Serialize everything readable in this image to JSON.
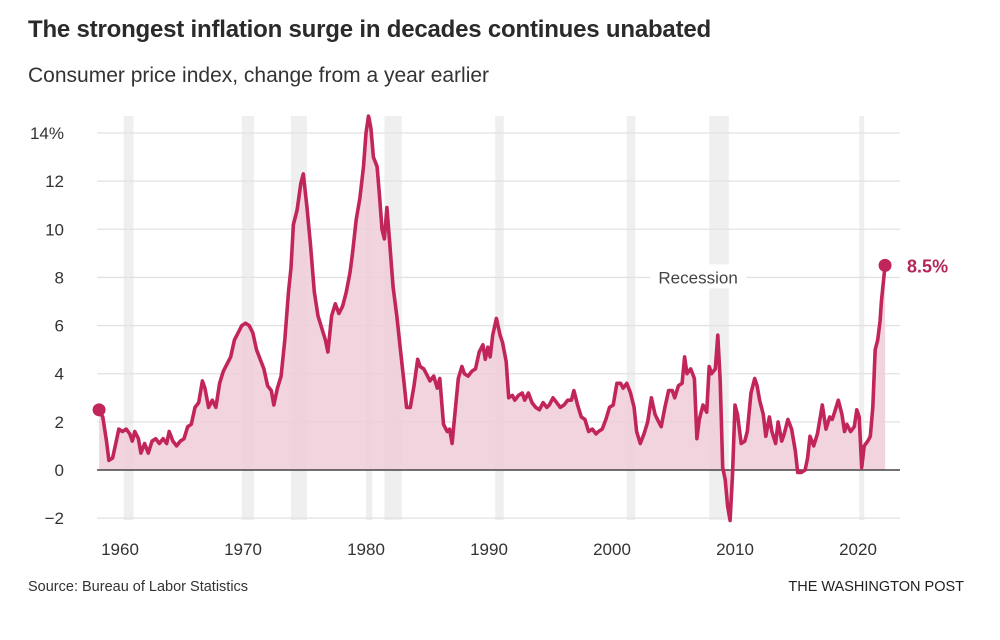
{
  "header": {
    "title": "The strongest inflation surge in decades continues unabated",
    "subtitle": "Consumer price index, change from a year earlier"
  },
  "footer": {
    "source": "Source: Bureau of Labor Statistics",
    "credit": "THE WASHINGTON POST"
  },
  "colors": {
    "line": "#c2255c",
    "fill": "#f0cdd8",
    "recession": "#efefef",
    "grid": "#e2e2e2",
    "zero_line": "#444444",
    "end_label": "#b5245a"
  },
  "chart_data": {
    "type": "area",
    "title": "The strongest inflation surge in decades continues unabated",
    "subtitle": "Consumer price index, change from a year earlier",
    "xlabel": "",
    "ylabel": "",
    "xlim": [
      1957.8,
      2023.4
    ],
    "ylim": [
      -2,
      14.8
    ],
    "grid": true,
    "y_ticks": [
      {
        "value": -2,
        "label": "−2"
      },
      {
        "value": 0,
        "label": "0"
      },
      {
        "value": 2,
        "label": "2"
      },
      {
        "value": 4,
        "label": "4"
      },
      {
        "value": 6,
        "label": "6"
      },
      {
        "value": 8,
        "label": "8"
      },
      {
        "value": 10,
        "label": "10"
      },
      {
        "value": 12,
        "label": "12"
      },
      {
        "value": 14,
        "label": "14%"
      }
    ],
    "x_ticks": [
      {
        "value": 1960,
        "label": "1960"
      },
      {
        "value": 1970,
        "label": "1970"
      },
      {
        "value": 1980,
        "label": "1980"
      },
      {
        "value": 1990,
        "label": "1990"
      },
      {
        "value": 2000,
        "label": "2000"
      },
      {
        "value": 2010,
        "label": "2010"
      },
      {
        "value": 2020,
        "label": "2020"
      }
    ],
    "recessions": [
      [
        1960.3,
        1961.1
      ],
      [
        1969.9,
        1970.9
      ],
      [
        1973.9,
        1975.2
      ],
      [
        1980.0,
        1980.5
      ],
      [
        1981.5,
        1982.9
      ],
      [
        1990.5,
        1991.2
      ],
      [
        2001.2,
        2001.9
      ],
      [
        2007.9,
        2009.5
      ],
      [
        2020.1,
        2020.35
      ]
    ],
    "annotations": [
      {
        "text": "Recession",
        "x": 2007.0,
        "y": 8.0
      }
    ],
    "end_label": {
      "text": "8.5%",
      "x": 2022.2,
      "y": 8.5
    },
    "start_marker": {
      "x": 1958.3,
      "y": 2.5
    },
    "series": [
      {
        "name": "CPI, year-over-year change (%)",
        "points": [
          [
            1958.3,
            2.5
          ],
          [
            1958.6,
            2.2
          ],
          [
            1958.9,
            1.2
          ],
          [
            1959.1,
            0.4
          ],
          [
            1959.4,
            0.5
          ],
          [
            1959.7,
            1.2
          ],
          [
            1959.9,
            1.7
          ],
          [
            1960.2,
            1.6
          ],
          [
            1960.5,
            1.7
          ],
          [
            1960.8,
            1.5
          ],
          [
            1961.0,
            1.2
          ],
          [
            1961.2,
            1.6
          ],
          [
            1961.5,
            1.3
          ],
          [
            1961.7,
            0.7
          ],
          [
            1962.0,
            1.1
          ],
          [
            1962.3,
            0.7
          ],
          [
            1962.6,
            1.2
          ],
          [
            1962.9,
            1.3
          ],
          [
            1963.2,
            1.1
          ],
          [
            1963.5,
            1.3
          ],
          [
            1963.8,
            1.1
          ],
          [
            1964.0,
            1.6
          ],
          [
            1964.3,
            1.2
          ],
          [
            1964.6,
            1.0
          ],
          [
            1964.9,
            1.2
          ],
          [
            1965.2,
            1.3
          ],
          [
            1965.5,
            1.8
          ],
          [
            1965.8,
            1.9
          ],
          [
            1966.1,
            2.6
          ],
          [
            1966.4,
            2.8
          ],
          [
            1966.7,
            3.7
          ],
          [
            1966.9,
            3.4
          ],
          [
            1967.2,
            2.6
          ],
          [
            1967.5,
            2.9
          ],
          [
            1967.8,
            2.6
          ],
          [
            1968.1,
            3.6
          ],
          [
            1968.4,
            4.1
          ],
          [
            1968.7,
            4.4
          ],
          [
            1969.0,
            4.7
          ],
          [
            1969.3,
            5.4
          ],
          [
            1969.6,
            5.7
          ],
          [
            1969.9,
            6.0
          ],
          [
            1970.2,
            6.1
          ],
          [
            1970.5,
            6.0
          ],
          [
            1970.8,
            5.7
          ],
          [
            1971.1,
            5.0
          ],
          [
            1971.4,
            4.6
          ],
          [
            1971.7,
            4.2
          ],
          [
            1972.0,
            3.5
          ],
          [
            1972.3,
            3.3
          ],
          [
            1972.5,
            2.7
          ],
          [
            1972.8,
            3.4
          ],
          [
            1973.1,
            3.9
          ],
          [
            1973.4,
            5.4
          ],
          [
            1973.7,
            7.4
          ],
          [
            1973.9,
            8.4
          ],
          [
            1974.1,
            10.2
          ],
          [
            1974.4,
            10.8
          ],
          [
            1974.7,
            11.9
          ],
          [
            1974.9,
            12.3
          ],
          [
            1975.2,
            10.9
          ],
          [
            1975.5,
            9.3
          ],
          [
            1975.8,
            7.4
          ],
          [
            1976.1,
            6.4
          ],
          [
            1976.4,
            5.9
          ],
          [
            1976.7,
            5.4
          ],
          [
            1976.9,
            4.9
          ],
          [
            1977.2,
            6.4
          ],
          [
            1977.5,
            6.9
          ],
          [
            1977.8,
            6.5
          ],
          [
            1978.1,
            6.8
          ],
          [
            1978.4,
            7.4
          ],
          [
            1978.7,
            8.2
          ],
          [
            1978.9,
            9.0
          ],
          [
            1979.2,
            10.4
          ],
          [
            1979.5,
            11.3
          ],
          [
            1979.8,
            12.6
          ],
          [
            1980.0,
            14.0
          ],
          [
            1980.2,
            14.7
          ],
          [
            1980.4,
            14.2
          ],
          [
            1980.6,
            13.0
          ],
          [
            1980.9,
            12.6
          ],
          [
            1981.1,
            11.4
          ],
          [
            1981.3,
            10.0
          ],
          [
            1981.5,
            9.6
          ],
          [
            1981.7,
            10.9
          ],
          [
            1981.9,
            9.6
          ],
          [
            1982.2,
            7.6
          ],
          [
            1982.5,
            6.4
          ],
          [
            1982.8,
            5.0
          ],
          [
            1983.1,
            3.6
          ],
          [
            1983.3,
            2.6
          ],
          [
            1983.6,
            2.6
          ],
          [
            1983.9,
            3.5
          ],
          [
            1984.2,
            4.6
          ],
          [
            1984.4,
            4.3
          ],
          [
            1984.7,
            4.2
          ],
          [
            1984.9,
            4.0
          ],
          [
            1985.2,
            3.7
          ],
          [
            1985.5,
            3.9
          ],
          [
            1985.8,
            3.4
          ],
          [
            1986.0,
            3.8
          ],
          [
            1986.3,
            1.9
          ],
          [
            1986.6,
            1.6
          ],
          [
            1986.8,
            1.7
          ],
          [
            1987.0,
            1.1
          ],
          [
            1987.2,
            2.2
          ],
          [
            1987.5,
            3.8
          ],
          [
            1987.8,
            4.3
          ],
          [
            1988.0,
            4.0
          ],
          [
            1988.3,
            3.9
          ],
          [
            1988.6,
            4.1
          ],
          [
            1988.9,
            4.2
          ],
          [
            1989.2,
            4.9
          ],
          [
            1989.5,
            5.2
          ],
          [
            1989.7,
            4.6
          ],
          [
            1989.9,
            5.1
          ],
          [
            1990.1,
            4.7
          ],
          [
            1990.3,
            5.6
          ],
          [
            1990.6,
            6.3
          ],
          [
            1990.9,
            5.6
          ],
          [
            1991.1,
            5.3
          ],
          [
            1991.4,
            4.5
          ],
          [
            1991.6,
            3.0
          ],
          [
            1991.9,
            3.1
          ],
          [
            1992.1,
            2.9
          ],
          [
            1992.4,
            3.1
          ],
          [
            1992.7,
            3.2
          ],
          [
            1992.9,
            2.9
          ],
          [
            1993.2,
            3.2
          ],
          [
            1993.5,
            2.8
          ],
          [
            1993.8,
            2.6
          ],
          [
            1994.1,
            2.5
          ],
          [
            1994.4,
            2.8
          ],
          [
            1994.7,
            2.6
          ],
          [
            1994.9,
            2.7
          ],
          [
            1995.2,
            3.0
          ],
          [
            1995.5,
            2.8
          ],
          [
            1995.8,
            2.6
          ],
          [
            1996.1,
            2.7
          ],
          [
            1996.4,
            2.9
          ],
          [
            1996.7,
            2.9
          ],
          [
            1996.9,
            3.3
          ],
          [
            1997.2,
            2.7
          ],
          [
            1997.5,
            2.2
          ],
          [
            1997.8,
            2.1
          ],
          [
            1998.1,
            1.6
          ],
          [
            1998.4,
            1.7
          ],
          [
            1998.7,
            1.5
          ],
          [
            1998.9,
            1.6
          ],
          [
            1999.2,
            1.7
          ],
          [
            1999.5,
            2.1
          ],
          [
            1999.8,
            2.6
          ],
          [
            2000.1,
            2.7
          ],
          [
            2000.4,
            3.6
          ],
          [
            2000.7,
            3.6
          ],
          [
            2000.9,
            3.4
          ],
          [
            2001.2,
            3.6
          ],
          [
            2001.5,
            3.2
          ],
          [
            2001.8,
            2.6
          ],
          [
            2002.0,
            1.6
          ],
          [
            2002.3,
            1.1
          ],
          [
            2002.6,
            1.5
          ],
          [
            2002.9,
            2.0
          ],
          [
            2003.2,
            3.0
          ],
          [
            2003.5,
            2.3
          ],
          [
            2003.8,
            2.0
          ],
          [
            2004.0,
            1.8
          ],
          [
            2004.3,
            2.6
          ],
          [
            2004.6,
            3.3
          ],
          [
            2004.9,
            3.3
          ],
          [
            2005.1,
            3.0
          ],
          [
            2005.4,
            3.5
          ],
          [
            2005.7,
            3.6
          ],
          [
            2005.9,
            4.7
          ],
          [
            2006.1,
            4.0
          ],
          [
            2006.4,
            4.2
          ],
          [
            2006.7,
            3.8
          ],
          [
            2006.9,
            1.3
          ],
          [
            2007.1,
            2.1
          ],
          [
            2007.4,
            2.7
          ],
          [
            2007.7,
            2.4
          ],
          [
            2007.9,
            4.3
          ],
          [
            2008.1,
            4.0
          ],
          [
            2008.4,
            4.2
          ],
          [
            2008.6,
            5.6
          ],
          [
            2008.8,
            3.7
          ],
          [
            2009.0,
            0.1
          ],
          [
            2009.2,
            -0.4
          ],
          [
            2009.4,
            -1.5
          ],
          [
            2009.6,
            -2.1
          ],
          [
            2009.8,
            -0.2
          ],
          [
            2010.0,
            2.7
          ],
          [
            2010.2,
            2.3
          ],
          [
            2010.5,
            1.1
          ],
          [
            2010.8,
            1.2
          ],
          [
            2011.0,
            1.6
          ],
          [
            2011.3,
            3.2
          ],
          [
            2011.6,
            3.8
          ],
          [
            2011.8,
            3.5
          ],
          [
            2012.0,
            2.9
          ],
          [
            2012.3,
            2.3
          ],
          [
            2012.5,
            1.4
          ],
          [
            2012.8,
            2.2
          ],
          [
            2013.0,
            1.6
          ],
          [
            2013.3,
            1.1
          ],
          [
            2013.5,
            2.0
          ],
          [
            2013.8,
            1.2
          ],
          [
            2014.0,
            1.5
          ],
          [
            2014.3,
            2.1
          ],
          [
            2014.6,
            1.7
          ],
          [
            2014.9,
            0.8
          ],
          [
            2015.1,
            -0.1
          ],
          [
            2015.4,
            -0.1
          ],
          [
            2015.7,
            0.0
          ],
          [
            2015.9,
            0.5
          ],
          [
            2016.1,
            1.4
          ],
          [
            2016.4,
            1.0
          ],
          [
            2016.7,
            1.5
          ],
          [
            2016.9,
            2.1
          ],
          [
            2017.1,
            2.7
          ],
          [
            2017.4,
            1.7
          ],
          [
            2017.7,
            2.2
          ],
          [
            2017.9,
            2.1
          ],
          [
            2018.1,
            2.4
          ],
          [
            2018.4,
            2.9
          ],
          [
            2018.7,
            2.3
          ],
          [
            2018.9,
            1.6
          ],
          [
            2019.1,
            1.9
          ],
          [
            2019.4,
            1.6
          ],
          [
            2019.7,
            1.8
          ],
          [
            2019.9,
            2.5
          ],
          [
            2020.1,
            2.2
          ],
          [
            2020.3,
            0.1
          ],
          [
            2020.5,
            1.0
          ],
          [
            2020.8,
            1.2
          ],
          [
            2021.0,
            1.4
          ],
          [
            2021.2,
            2.6
          ],
          [
            2021.4,
            5.0
          ],
          [
            2021.6,
            5.4
          ],
          [
            2021.8,
            6.2
          ],
          [
            2021.9,
            7.0
          ],
          [
            2022.0,
            7.5
          ],
          [
            2022.2,
            8.5
          ]
        ]
      }
    ]
  }
}
